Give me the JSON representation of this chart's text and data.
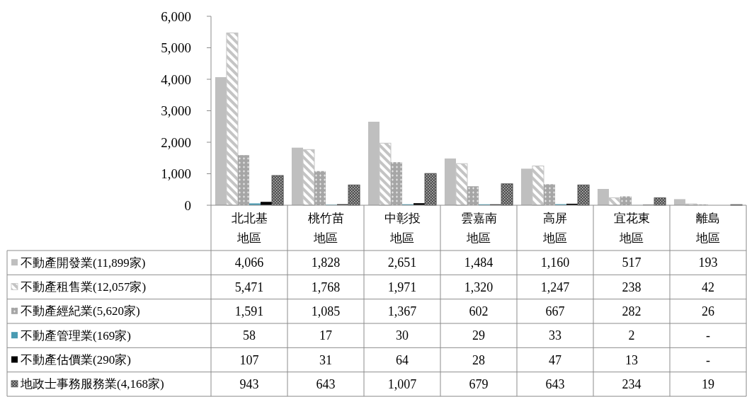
{
  "chart_data": {
    "type": "bar",
    "categories": [
      "北北基地區",
      "桃竹苗地區",
      "中彰投地區",
      "雲嘉南地區",
      "高屏地區",
      "宜花東地區",
      "離島地區"
    ],
    "series": [
      {
        "name": "不動產開發業(11,899家)",
        "color": "#bfbfbf",
        "values": [
          4066,
          1828,
          2651,
          1484,
          1160,
          517,
          193
        ],
        "value_labels": [
          "4,066",
          "1,828",
          "2,651",
          "1,484",
          "1,160",
          "517",
          "193"
        ]
      },
      {
        "name": "不動產租售業(12,057家)",
        "color": "#c4c4c4",
        "values": [
          5471,
          1768,
          1971,
          1320,
          1247,
          238,
          42
        ],
        "value_labels": [
          "5,471",
          "1,768",
          "1,971",
          "1,320",
          "1,247",
          "238",
          "42"
        ]
      },
      {
        "name": "不動產經紀業(5,620家)",
        "color": "#a6a6a6",
        "values": [
          1591,
          1085,
          1367,
          602,
          667,
          282,
          26
        ],
        "value_labels": [
          "1,591",
          "1,085",
          "1,367",
          "602",
          "667",
          "282",
          "26"
        ]
      },
      {
        "name": "不動產管理業(169家)",
        "color": "#4a9bb2",
        "values": [
          58,
          17,
          30,
          29,
          33,
          2,
          null
        ],
        "value_labels": [
          "58",
          "17",
          "30",
          "29",
          "33",
          "2",
          "-"
        ]
      },
      {
        "name": "不動產估價業(290家)",
        "color": "#000000",
        "values": [
          107,
          31,
          64,
          28,
          47,
          13,
          null
        ],
        "value_labels": [
          "107",
          "31",
          "64",
          "28",
          "47",
          "13",
          "-"
        ]
      },
      {
        "name": "地政士事務服務業(4,168家)",
        "color": "#505050",
        "values": [
          943,
          643,
          1007,
          679,
          643,
          234,
          19
        ],
        "value_labels": [
          "943",
          "643",
          "1,007",
          "679",
          "643",
          "234",
          "19"
        ]
      }
    ],
    "ylim": [
      0,
      6000
    ],
    "yticks": [
      0,
      {
        "value": 1000,
        "label": "1,000"
      },
      {
        "value": 2000,
        "label": "2,000"
      },
      {
        "value": 3000,
        "label": "3,000"
      },
      {
        "value": 4000,
        "label": "4,000"
      },
      {
        "value": 5000,
        "label": "5,000"
      },
      {
        "value": 6000,
        "label": "6,000"
      }
    ],
    "legend": "bottom"
  }
}
